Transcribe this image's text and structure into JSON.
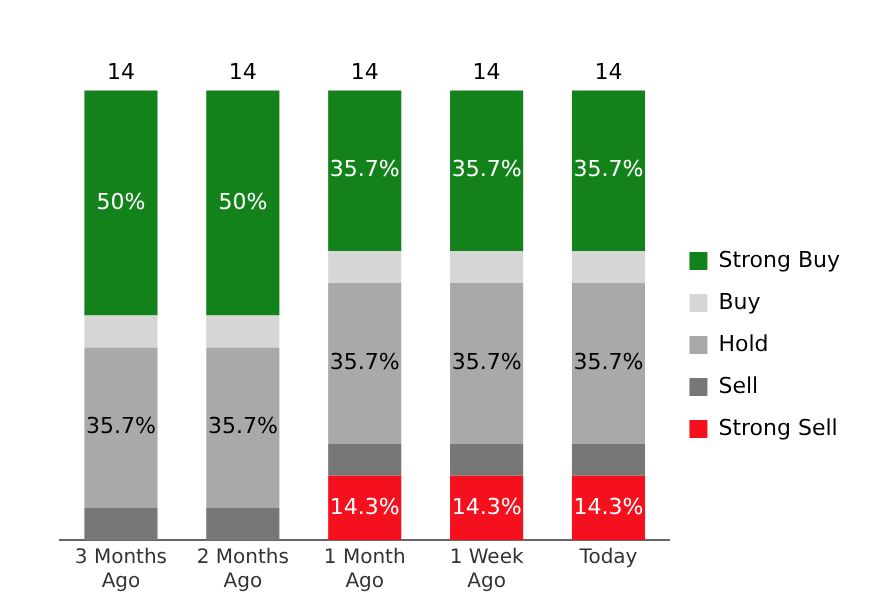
{
  "chart_data": {
    "type": "bar",
    "stacked": true,
    "categories": [
      "3 Months Ago",
      "2 Months Ago",
      "1 Month Ago",
      "1 Week Ago",
      "Today"
    ],
    "series": [
      {
        "name": "Strong Sell",
        "color": "#f5101e",
        "values": [
          0,
          0,
          14.3,
          14.3,
          14.3
        ],
        "value_labels": [
          null,
          null,
          "14.3%",
          "14.3%",
          "14.3%"
        ]
      },
      {
        "name": "Sell",
        "color": "#777777",
        "values": [
          7.1,
          7.1,
          7.1,
          7.1,
          7.1
        ],
        "value_labels": [
          null,
          null,
          null,
          null,
          null
        ]
      },
      {
        "name": "Hold",
        "color": "#a9a9a9",
        "values": [
          35.7,
          35.7,
          35.7,
          35.7,
          35.7
        ],
        "value_labels": [
          "35.7%",
          "35.7%",
          "35.7%",
          "35.7%",
          "35.7%"
        ]
      },
      {
        "name": "Buy",
        "color": "#d6d6d6",
        "values": [
          7.1,
          7.1,
          7.1,
          7.1,
          7.1
        ],
        "value_labels": [
          null,
          null,
          null,
          null,
          null
        ]
      },
      {
        "name": "Strong Buy",
        "color": "#14821a",
        "values": [
          50,
          50,
          35.7,
          35.7,
          35.7
        ],
        "value_labels": [
          "50%",
          "50%",
          "35.7%",
          "35.7%",
          "35.7%"
        ]
      }
    ],
    "annotations": [
      {
        "text": "14",
        "x": "3 Months Ago",
        "y": 99.9
      },
      {
        "text": "14",
        "x": "2 Months Ago",
        "y": 99.9
      },
      {
        "text": "14",
        "x": "1 Month Ago",
        "y": 99.9
      },
      {
        "text": "14",
        "x": "1 Week Ago",
        "y": 99.9
      },
      {
        "text": "14",
        "x": "Today",
        "y": 99.9
      }
    ],
    "legend": "right",
    "grid": false
  }
}
